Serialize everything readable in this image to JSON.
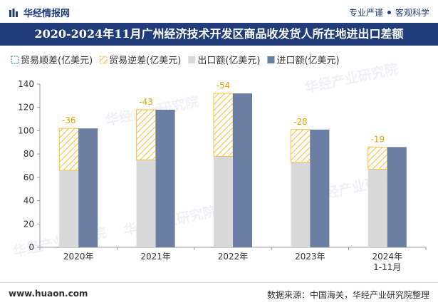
{
  "header": {
    "brand": "华经情报网",
    "slogan_left": "专业严谨",
    "slogan_right": "客观科学"
  },
  "chart_data": {
    "type": "bar",
    "title": "2020-2024年11月广州经济技术开发区商品收发货人所在地进出口差额",
    "categories": [
      "2020年",
      "2021年",
      "2022年",
      "2023年",
      "2024年\n1-11月"
    ],
    "legend": [
      "贸易顺差(亿美元)",
      "贸易逆差(亿美元)",
      "出口额(亿美元)",
      "进口额(亿美元)"
    ],
    "legend_position": "top-left",
    "series": [
      {
        "name": "出口额(亿美元)",
        "values": [
          66,
          75,
          78,
          73,
          67
        ],
        "color": "#d9d9d9"
      },
      {
        "name": "进口额(亿美元)",
        "values": [
          102,
          118,
          132,
          101,
          86
        ],
        "color": "#6b7fa3"
      }
    ],
    "balance": {
      "name": "贸易逆差(亿美元)",
      "values": [
        -36,
        -43,
        -54,
        -28,
        -19
      ],
      "color": "#f5c242"
    },
    "surplus_color": "#4a8fa8",
    "ylim": [
      0,
      140
    ],
    "yticks": [
      0,
      20,
      40,
      60,
      80,
      100,
      120,
      140
    ],
    "grid": false
  },
  "watermark": "华经产业研究院",
  "footer": {
    "site": "www.huaon.com",
    "source": "数据来源：中国海关，华经产业研究院整理"
  }
}
